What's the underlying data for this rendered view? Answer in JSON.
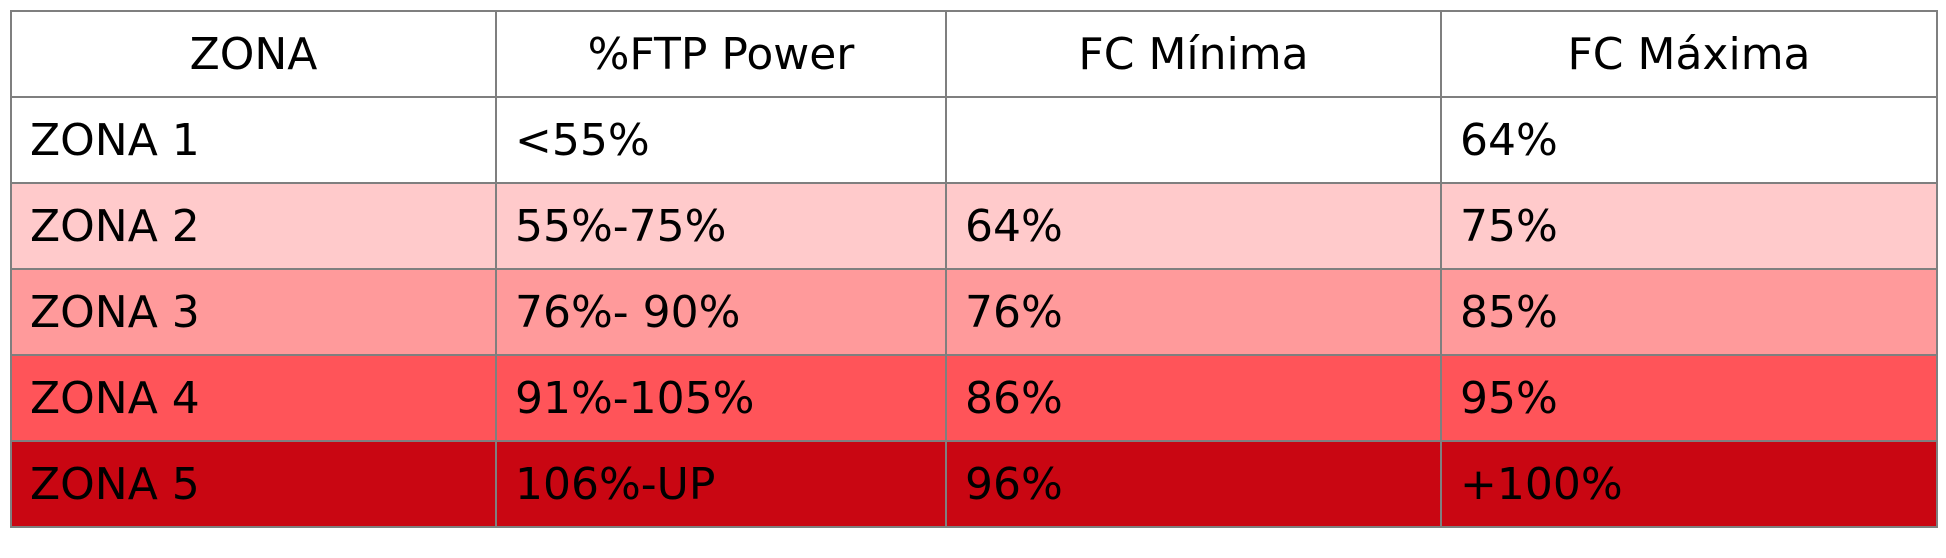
{
  "table": {
    "headers": [
      "ZONA",
      "%FTP Power",
      "FC Mínima",
      "FC Máxima"
    ],
    "rows": [
      {
        "cells": [
          "ZONA 1",
          "<55%",
          "",
          "64%"
        ],
        "color": "#ffffff"
      },
      {
        "cells": [
          "ZONA 2",
          "55%-75%",
          "64%",
          "75%"
        ],
        "color": "#ffcacb"
      },
      {
        "cells": [
          "ZONA 3",
          "76%- 90%",
          "76%",
          "85%"
        ],
        "color": "#ff9a9b"
      },
      {
        "cells": [
          "ZONA 4",
          "91%-105%",
          "86%",
          "95%"
        ],
        "color": "#ff5459"
      },
      {
        "cells": [
          "ZONA 5",
          "106%-UP",
          "96%",
          "+100%"
        ],
        "color": "#c90612"
      }
    ]
  }
}
